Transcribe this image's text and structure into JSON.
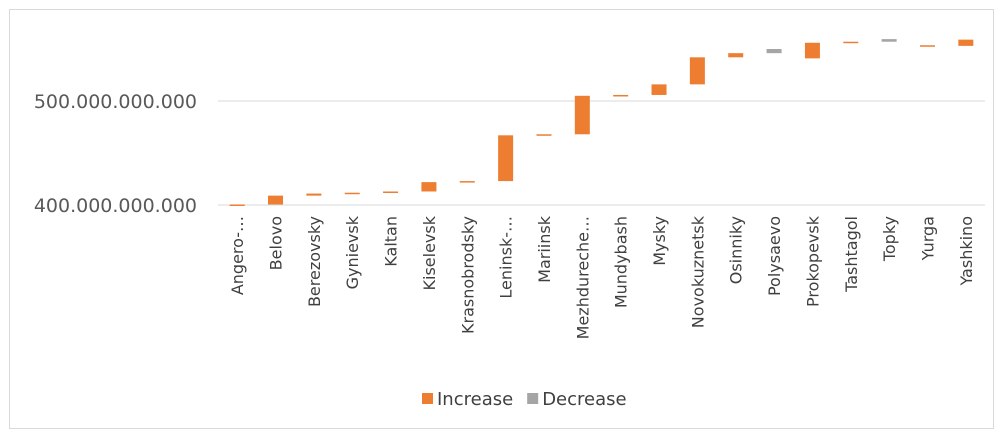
{
  "chart_data": {
    "type": "waterfall",
    "title": "",
    "xlabel": "",
    "ylabel": "",
    "ylim": [
      300000000000,
      580000000000
    ],
    "y_ticks": [
      {
        "value": 400000000000,
        "label": "400.000.000.000"
      },
      {
        "value": 500000000000,
        "label": "500.000.000.000"
      }
    ],
    "grid": true,
    "legend_position": "bottom",
    "legend": [
      {
        "key": "increase",
        "label": "Increase",
        "color": "#ed7d31"
      },
      {
        "key": "decrease",
        "label": "Decrease",
        "color": "#a5a5a5"
      }
    ],
    "categories": [
      "Angero-…",
      "Belovo",
      "Berezovsky",
      "Gynievsk",
      "Kaltan",
      "Kiselevsk",
      "Krasnobrodsky",
      "Leninsk-…",
      "Mariinsk",
      "Mezhdureche…",
      "Mundybash",
      "Mysky",
      "Novokuznetsk",
      "Osinniky",
      "Polysaevo",
      "Prokopevsk",
      "Tashtagol",
      "Topky",
      "Yurga",
      "Yashkino"
    ],
    "bars": [
      {
        "category": "Angero-…",
        "start": 400000000000,
        "end": 400500000000,
        "kind": "increase"
      },
      {
        "category": "Belovo",
        "start": 400500000000,
        "end": 409000000000,
        "kind": "increase"
      },
      {
        "category": "Berezovsky",
        "start": 409000000000,
        "end": 411000000000,
        "kind": "increase"
      },
      {
        "category": "Gynievsk",
        "start": 411000000000,
        "end": 411800000000,
        "kind": "increase"
      },
      {
        "category": "Kaltan",
        "start": 411800000000,
        "end": 413000000000,
        "kind": "increase"
      },
      {
        "category": "Kiselevsk",
        "start": 413000000000,
        "end": 422000000000,
        "kind": "increase"
      },
      {
        "category": "Krasnobrodsky",
        "start": 422000000000,
        "end": 423000000000,
        "kind": "increase"
      },
      {
        "category": "Leninsk-…",
        "start": 423000000000,
        "end": 467000000000,
        "kind": "increase"
      },
      {
        "category": "Mariinsk",
        "start": 467000000000,
        "end": 468000000000,
        "kind": "increase"
      },
      {
        "category": "Mezhdureche…",
        "start": 468000000000,
        "end": 505000000000,
        "kind": "increase"
      },
      {
        "category": "Mundybash",
        "start": 505000000000,
        "end": 505800000000,
        "kind": "increase"
      },
      {
        "category": "Mysky",
        "start": 505800000000,
        "end": 516000000000,
        "kind": "increase"
      },
      {
        "category": "Novokuznetsk",
        "start": 516000000000,
        "end": 542000000000,
        "kind": "increase"
      },
      {
        "category": "Osinniky",
        "start": 542000000000,
        "end": 546000000000,
        "kind": "increase"
      },
      {
        "category": "Polysaevo",
        "start": 550000000000,
        "end": 546000000000,
        "kind": "decrease"
      },
      {
        "category": "Prokopevsk",
        "start": 541000000000,
        "end": 556000000000,
        "kind": "increase"
      },
      {
        "category": "Tashtagol",
        "start": 556000000000,
        "end": 557000000000,
        "kind": "increase"
      },
      {
        "category": "Topky",
        "start": 559500000000,
        "end": 557000000000,
        "kind": "decrease"
      },
      {
        "category": "Yurga",
        "start": 552800000000,
        "end": 553600000000,
        "kind": "increase"
      },
      {
        "category": "Yashkino",
        "start": 553000000000,
        "end": 559000000000,
        "kind": "increase"
      }
    ]
  }
}
